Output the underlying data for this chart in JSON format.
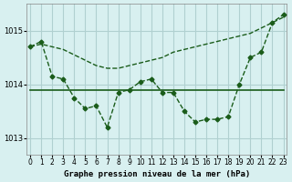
{
  "title": "Graphe pression niveau de la mer (hPa)",
  "bg_color": "#d8f0f0",
  "grid_color": "#b0d0d0",
  "line_color": "#1a5c1a",
  "x_labels": [
    "0",
    "1",
    "2",
    "3",
    "4",
    "5",
    "6",
    "7",
    "8",
    "9",
    "10",
    "11",
    "12",
    "13",
    "14",
    "15",
    "16",
    "17",
    "18",
    "19",
    "20",
    "21",
    "22",
    "23"
  ],
  "yticks": [
    1013,
    1014,
    1015
  ],
  "ylim": [
    1012.7,
    1015.5
  ],
  "xlim": [
    -0.3,
    23.3
  ],
  "line1_x": [
    0,
    1,
    2,
    3,
    4,
    5,
    6,
    7,
    8,
    9,
    10,
    11,
    12,
    13,
    14,
    15,
    16,
    17,
    18,
    19,
    20,
    21,
    22,
    23
  ],
  "line1_y": [
    1014.7,
    1014.75,
    1014.7,
    1014.65,
    1014.55,
    1014.45,
    1014.35,
    1014.3,
    1014.3,
    1014.35,
    1014.4,
    1014.45,
    1014.5,
    1014.6,
    1014.65,
    1014.7,
    1014.75,
    1014.8,
    1014.85,
    1014.9,
    1014.95,
    1015.05,
    1015.15,
    1015.25
  ],
  "line2_x": [
    0,
    1,
    2,
    3,
    4,
    5,
    6,
    7,
    8,
    9,
    10,
    11,
    12,
    13,
    14,
    15,
    16,
    17,
    18,
    19,
    20,
    21,
    22,
    23
  ],
  "line2_y": [
    1014.7,
    1014.8,
    1014.15,
    1014.1,
    1013.75,
    1013.55,
    1013.6,
    1013.2,
    1013.85,
    1013.9,
    1014.05,
    1014.1,
    1013.85,
    1013.85,
    1013.5,
    1013.3,
    1013.35,
    1013.35,
    1013.4,
    1014.0,
    1014.5,
    1014.6,
    1015.15,
    1015.3
  ],
  "line3_x": [
    0,
    1,
    2,
    3,
    4,
    5,
    6,
    7,
    8,
    9,
    10,
    11,
    12,
    13,
    14,
    15,
    16,
    17,
    18,
    19,
    20,
    21,
    22,
    23
  ],
  "line3_y": [
    1013.9,
    1013.9,
    1013.9,
    1013.9,
    1013.9,
    1013.9,
    1013.9,
    1013.9,
    1013.9,
    1013.9,
    1013.9,
    1013.9,
    1013.9,
    1013.9,
    1013.9,
    1013.9,
    1013.9,
    1013.9,
    1013.9,
    1013.9,
    1013.9,
    1013.9,
    1013.9,
    1013.9
  ]
}
